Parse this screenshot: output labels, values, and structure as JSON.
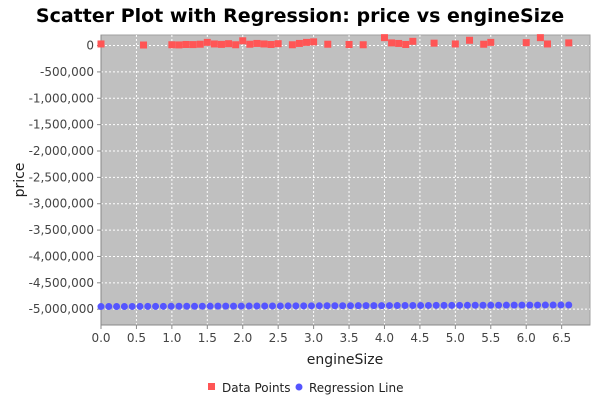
{
  "chart_data": {
    "type": "scatter",
    "title": "Scatter Plot with Regression: price vs engineSize",
    "xlabel": "engineSize",
    "ylabel": "price",
    "xlim": [
      0,
      6.9
    ],
    "ylim": [
      -5300000,
      200000
    ],
    "x_ticks": [
      0.0,
      0.5,
      1.0,
      1.5,
      2.0,
      2.5,
      3.0,
      3.5,
      4.0,
      4.5,
      5.0,
      5.5,
      6.0,
      6.5
    ],
    "x_tick_labels": [
      "0.0",
      "0.5",
      "1.0",
      "1.5",
      "2.0",
      "2.5",
      "3.0",
      "3.5",
      "4.0",
      "4.5",
      "5.0",
      "5.5",
      "6.0",
      "6.5"
    ],
    "y_ticks": [
      0,
      -500000,
      -1000000,
      -1500000,
      -2000000,
      -2500000,
      -3000000,
      -3500000,
      -4000000,
      -4500000,
      -5000000
    ],
    "y_tick_labels": [
      "0",
      "-500,000",
      "-1,000,000",
      "-1,500,000",
      "-2,000,000",
      "-2,500,000",
      "-3,000,000",
      "-3,500,000",
      "-4,000,000",
      "-4,500,000",
      "-5,000,000"
    ],
    "grid": true,
    "legend_position": "bottom",
    "colors": {
      "plot_background": "#c0c0c0",
      "grid": "#ffffff",
      "data_points": "#ff5555",
      "regression_line": "#5555ff"
    },
    "series": [
      {
        "name": "Data Points",
        "marker": "square",
        "points": [
          {
            "x": 0.0,
            "y": 30000
          },
          {
            "x": 0.6,
            "y": 10000
          },
          {
            "x": 1.0,
            "y": 15000
          },
          {
            "x": 1.1,
            "y": 12000
          },
          {
            "x": 1.2,
            "y": 20000
          },
          {
            "x": 1.3,
            "y": 18000
          },
          {
            "x": 1.4,
            "y": 25000
          },
          {
            "x": 1.5,
            "y": 60000
          },
          {
            "x": 1.6,
            "y": 30000
          },
          {
            "x": 1.7,
            "y": 22000
          },
          {
            "x": 1.8,
            "y": 35000
          },
          {
            "x": 1.9,
            "y": 15000
          },
          {
            "x": 2.0,
            "y": 90000
          },
          {
            "x": 2.1,
            "y": 25000
          },
          {
            "x": 2.2,
            "y": 40000
          },
          {
            "x": 2.3,
            "y": 30000
          },
          {
            "x": 2.4,
            "y": 20000
          },
          {
            "x": 2.5,
            "y": 35000
          },
          {
            "x": 2.7,
            "y": 15000
          },
          {
            "x": 2.8,
            "y": 40000
          },
          {
            "x": 2.9,
            "y": 60000
          },
          {
            "x": 3.0,
            "y": 70000
          },
          {
            "x": 3.2,
            "y": 25000
          },
          {
            "x": 3.5,
            "y": 20000
          },
          {
            "x": 3.7,
            "y": 15000
          },
          {
            "x": 4.0,
            "y": 150000
          },
          {
            "x": 4.1,
            "y": 50000
          },
          {
            "x": 4.2,
            "y": 40000
          },
          {
            "x": 4.3,
            "y": 20000
          },
          {
            "x": 4.4,
            "y": 80000
          },
          {
            "x": 4.7,
            "y": 45000
          },
          {
            "x": 5.0,
            "y": 30000
          },
          {
            "x": 5.2,
            "y": 100000
          },
          {
            "x": 5.4,
            "y": 25000
          },
          {
            "x": 5.5,
            "y": 60000
          },
          {
            "x": 6.0,
            "y": 55000
          },
          {
            "x": 6.2,
            "y": 150000
          },
          {
            "x": 6.3,
            "y": 30000
          },
          {
            "x": 6.6,
            "y": 50000
          }
        ]
      },
      {
        "name": "Regression Line",
        "marker": "circle",
        "x_start": 0.0,
        "x_end": 6.6,
        "y_start": -4950000,
        "y_end": -4920000,
        "point_count": 61
      }
    ]
  }
}
